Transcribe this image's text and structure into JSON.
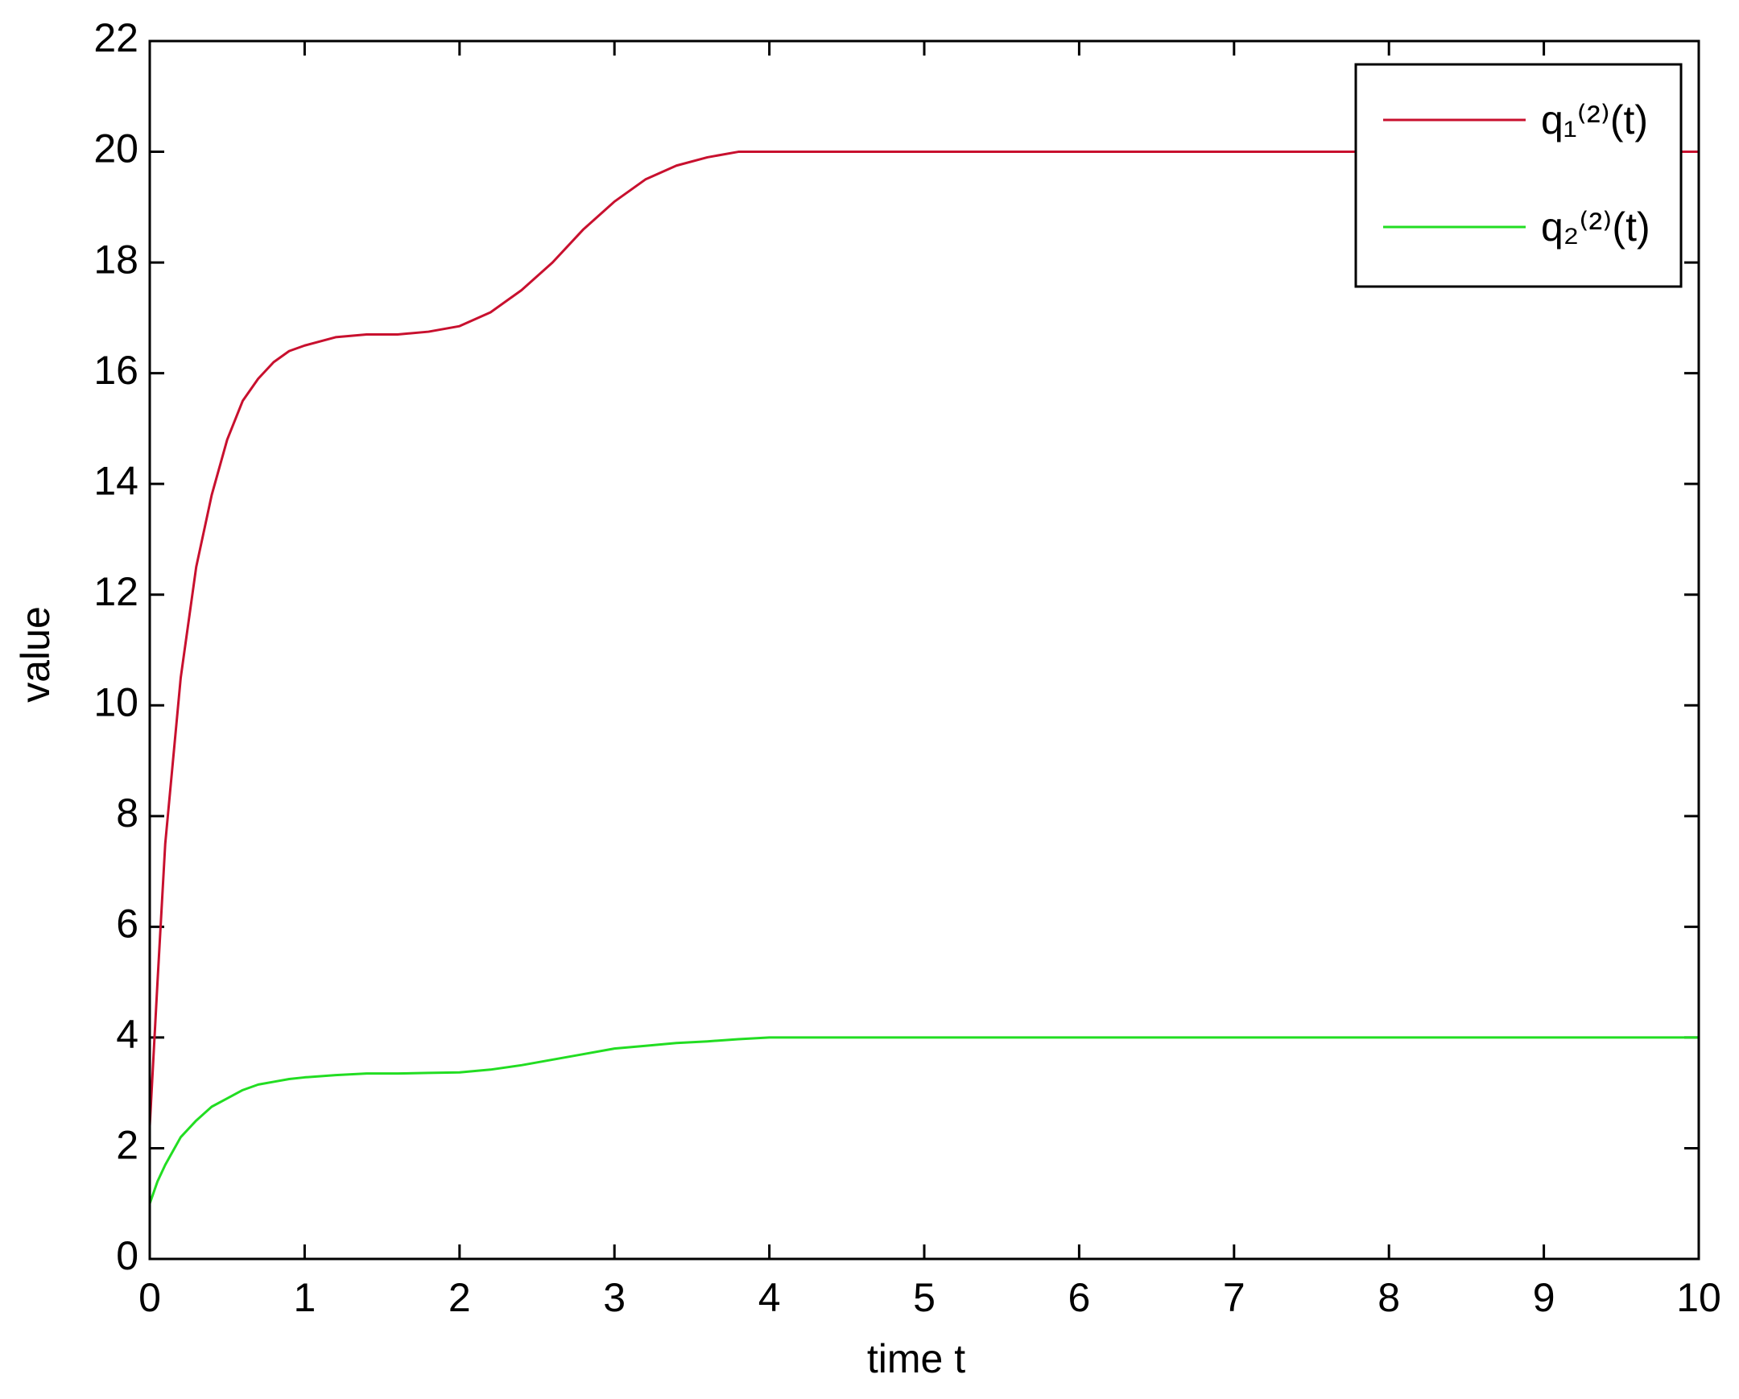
{
  "chart_data": {
    "type": "line",
    "xlabel": "time t",
    "ylabel": "value",
    "x": [
      0,
      0.05,
      0.1,
      0.15,
      0.2,
      0.3,
      0.4,
      0.5,
      0.6,
      0.7,
      0.8,
      0.9,
      1.0,
      1.2,
      1.4,
      1.6,
      1.8,
      2.0,
      2.2,
      2.4,
      2.6,
      2.8,
      3.0,
      3.2,
      3.4,
      3.6,
      3.8,
      4.0,
      10
    ],
    "series": [
      {
        "name": "q₁⁽²⁾(t)",
        "color": "#c8102e",
        "values": [
          2.4,
          5,
          7.5,
          9,
          10.5,
          12.5,
          13.8,
          14.8,
          15.5,
          15.9,
          16.2,
          16.4,
          16.5,
          16.65,
          16.7,
          16.7,
          16.75,
          16.85,
          17.1,
          17.5,
          18.0,
          18.6,
          19.1,
          19.5,
          19.75,
          19.9,
          20,
          20,
          20
        ]
      },
      {
        "name": "q₂⁽²⁾(t)",
        "color": "#22dd22",
        "values": [
          1.0,
          1.4,
          1.7,
          1.95,
          2.2,
          2.5,
          2.75,
          2.9,
          3.05,
          3.15,
          3.2,
          3.25,
          3.28,
          3.32,
          3.35,
          3.35,
          3.36,
          3.37,
          3.42,
          3.5,
          3.6,
          3.7,
          3.8,
          3.85,
          3.9,
          3.93,
          3.97,
          4,
          4
        ]
      }
    ],
    "xlim": [
      0,
      10
    ],
    "xticks": [
      0,
      1,
      2,
      3,
      4,
      5,
      6,
      7,
      8,
      9,
      10
    ],
    "ylim": [
      0,
      22
    ],
    "yticks": [
      0,
      2,
      4,
      6,
      8,
      10,
      12,
      14,
      16,
      18,
      20,
      22
    ],
    "legend": "upper-right"
  }
}
